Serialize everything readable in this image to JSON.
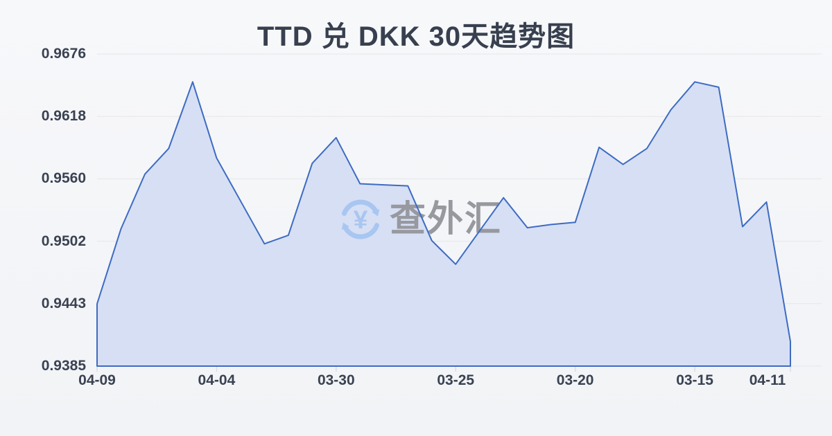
{
  "chart": {
    "title": "TTD 兑 DKK 30天趋势图"
  },
  "watermark": {
    "text": "查外汇",
    "currency_symbol": "¥",
    "icon": "currency-exchange-icon",
    "icon_color": "#a9c6f1",
    "text_color": "#97999f"
  },
  "chart_data": {
    "type": "area",
    "title": "TTD 兑 DKK 30天趋势图",
    "xlabel": "",
    "ylabel": "",
    "ylim": [
      0.9385,
      0.9676
    ],
    "y_tick_labels": [
      "0.9676",
      "0.9618",
      "0.9560",
      "0.9502",
      "0.9443",
      "0.9385"
    ],
    "x_tick_labels": [
      "04-09",
      "04-04",
      "03-30",
      "03-25",
      "03-20",
      "03-15",
      "04-11"
    ],
    "x_tick_indices": [
      0,
      5,
      10,
      15,
      20,
      25,
      29
    ],
    "n_points": 30,
    "values": [
      0.9443,
      0.9513,
      0.9564,
      0.9588,
      0.965,
      0.9579,
      0.9539,
      0.9499,
      0.9507,
      0.9574,
      0.9598,
      0.9555,
      0.9554,
      0.9553,
      0.9502,
      0.948,
      0.9511,
      0.9542,
      0.9514,
      0.9517,
      0.9519,
      0.9589,
      0.9573,
      0.9588,
      0.9624,
      0.965,
      0.9645,
      0.9515,
      0.9538,
      0.9408
    ],
    "grid": true,
    "legend": "none",
    "line_color": "#3d6bc2",
    "fill_color": "#d6dff4",
    "grid_color": "#e3e6eb",
    "tick_color": "#d9dde3",
    "label_color": "#3a4252"
  }
}
